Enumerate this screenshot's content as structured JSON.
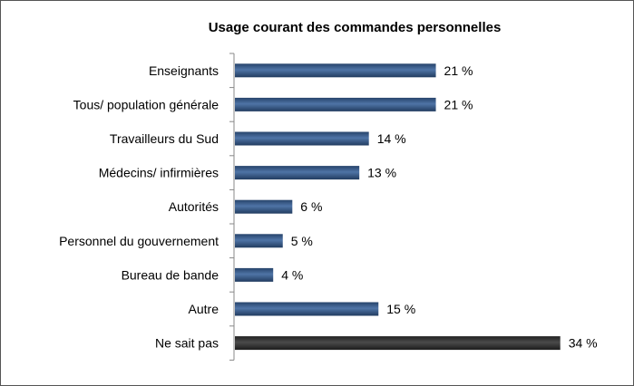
{
  "chart_data": {
    "type": "bar",
    "orientation": "horizontal",
    "title": "Usage courant des commandes personnelles",
    "categories": [
      "Enseignants",
      "Tous/ population générale",
      "Travailleurs du Sud",
      "Médecins/ infirmières",
      "Autorités",
      "Personnel du gouvernement",
      "Bureau de bande",
      "Autre",
      "Ne sait pas"
    ],
    "values": [
      21,
      21,
      14,
      13,
      6,
      5,
      4,
      15,
      34
    ],
    "value_labels": [
      "21 %",
      "21 %",
      "14 %",
      "13 %",
      "6 %",
      "5 %",
      "4 %",
      "15 %",
      "34 %"
    ],
    "unit": "%",
    "xlim": [
      0,
      36
    ],
    "grid": false,
    "legend": "none",
    "colors": {
      "default": "#3d5f8e",
      "last": "#3a3a3a"
    }
  }
}
